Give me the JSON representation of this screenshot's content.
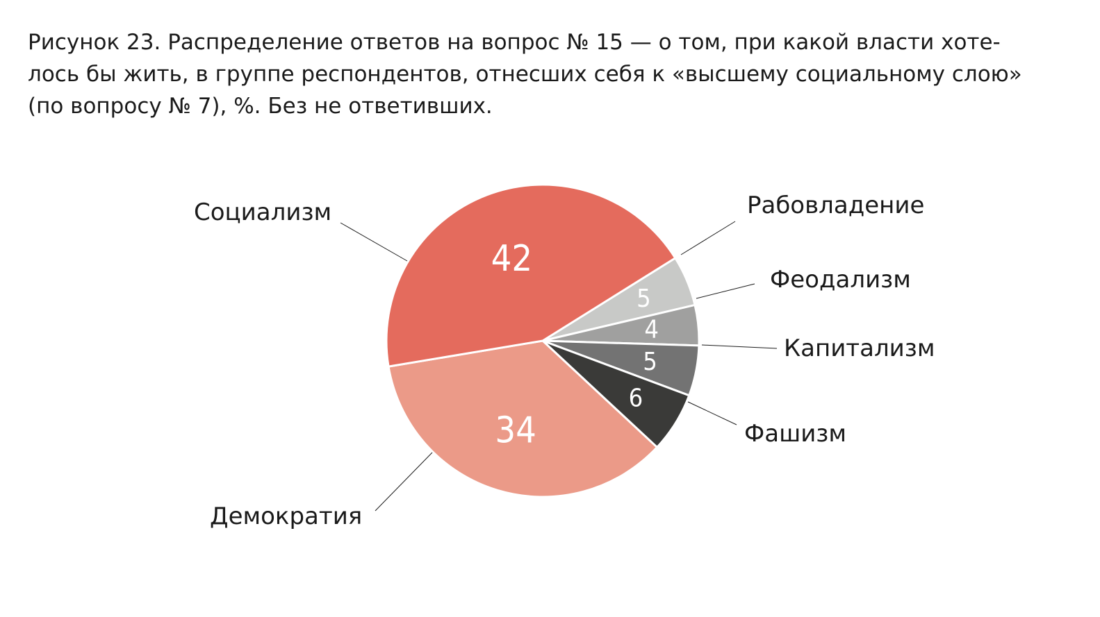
{
  "figure": {
    "title_lines": [
      "Рисунок 23. Распределение ответов на вопрос № 15 — о том, при какой власти хоте-",
      "лось бы жить, в группе респондентов, отнесших себя к «высшему социальному слою»",
      "(по вопросу № 7), %. Без не ответивших."
    ]
  },
  "chart_data": {
    "type": "pie",
    "title": "Рисунок 23. Распределение ответов на вопрос № 15 — о том, при какой власти хотелось бы жить, в группе респондентов, отнесших себя к «высшему социальному слою» (по вопросу № 7), %. Без не ответивших.",
    "unit": "%",
    "start_angle_deg": 58,
    "direction": "clockwise",
    "slices": [
      {
        "label": "Рабовладение",
        "value": 5,
        "color": "#c8c9c7",
        "value_color": "#ffffff"
      },
      {
        "label": "Феодализм",
        "value": 4,
        "color": "#a0a09f",
        "value_color": "#ffffff"
      },
      {
        "label": "Капитализм",
        "value": 5,
        "color": "#737373",
        "value_color": "#ffffff"
      },
      {
        "label": "Фашизм",
        "value": 6,
        "color": "#3a3a38",
        "value_color": "#ffffff"
      },
      {
        "label": "Демократия",
        "value": 34,
        "color": "#eb9a88",
        "value_color": "#ffffff"
      },
      {
        "label": "Социализм",
        "value": 42,
        "color": "#e46b5d",
        "value_color": "#ffffff"
      }
    ]
  }
}
